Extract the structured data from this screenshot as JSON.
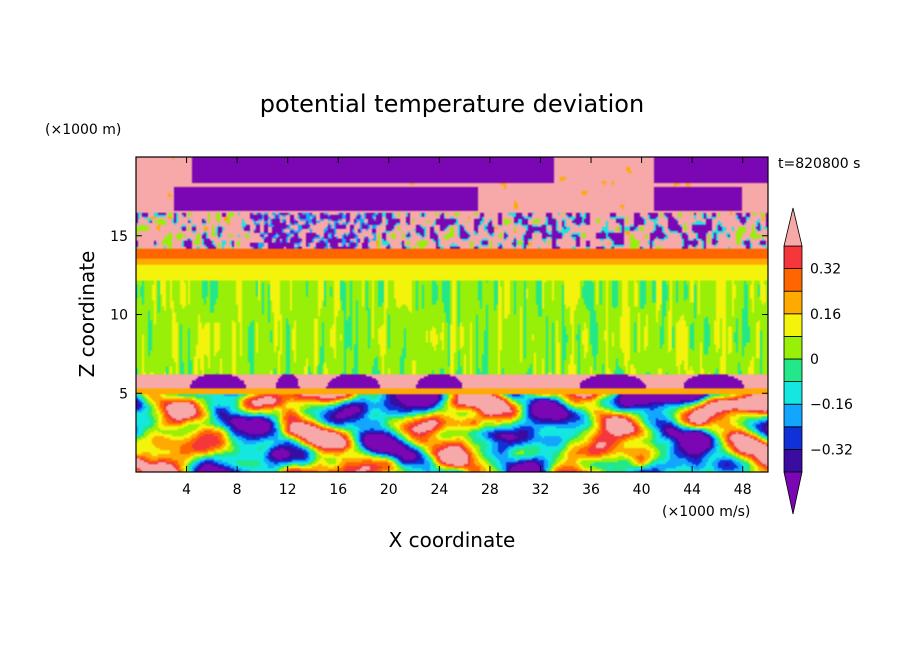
{
  "chart_data": {
    "type": "heatmap",
    "title": "potential temperature deviation",
    "xlabel": "X coordinate",
    "ylabel": "Z coordinate",
    "x_unit": "(×1000 m/s)",
    "y_unit": "(×1000 m)",
    "time_label": "t=820800 s",
    "xlim": [
      0,
      50
    ],
    "ylim": [
      0,
      20
    ],
    "x_ticks": [
      4,
      8,
      12,
      16,
      20,
      24,
      28,
      32,
      36,
      40,
      44,
      48
    ],
    "y_ticks": [
      5,
      10,
      15
    ],
    "colorbar": {
      "ticks": [
        0.32,
        0.16,
        0,
        -0.16,
        -0.32
      ],
      "tick_labels": [
        "0.32",
        "0.16",
        "0",
        "−0.16",
        "−0.32"
      ],
      "levels": [
        -0.4,
        -0.32,
        -0.24,
        -0.16,
        -0.08,
        0,
        0.08,
        0.16,
        0.24,
        0.32,
        0.4
      ],
      "extend": "both",
      "colors": [
        "#7b06b4",
        "#3a0ca0",
        "#1030d8",
        "#12a6ff",
        "#13e7e0",
        "#22e88a",
        "#98ef08",
        "#f3f30c",
        "#ffaa00",
        "#ff6600",
        "#f5363b",
        "#f7a8a8"
      ]
    },
    "field_regions": [
      {
        "z_range": [
          0,
          5
        ],
        "description_level": "mixed",
        "values_range": [
          -0.4,
          0.4
        ]
      },
      {
        "z_range": [
          5,
          6.2
        ],
        "value": 0.45
      },
      {
        "z_range": [
          6.2,
          12.5
        ],
        "value": 0.02
      },
      {
        "z_range": [
          12.5,
          14
        ],
        "value": 0.2
      },
      {
        "z_range": [
          14,
          20
        ],
        "description_level": "mixed",
        "values_range": [
          -0.45,
          0.45
        ]
      }
    ]
  }
}
